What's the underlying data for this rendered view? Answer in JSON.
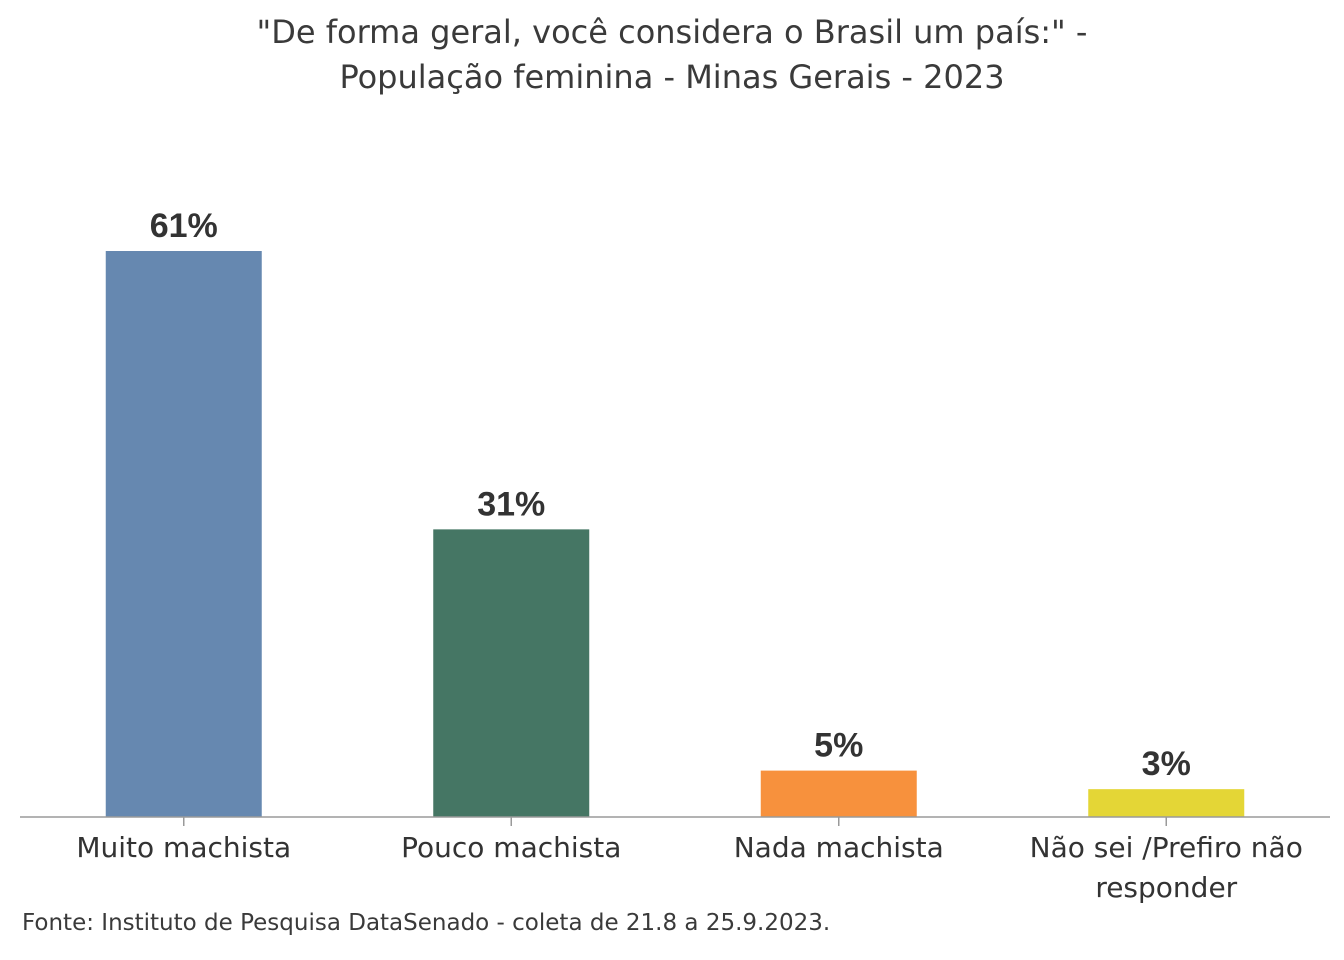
{
  "chart_data": {
    "type": "bar",
    "title_lines": [
      "\"De forma geral, você considera o Brasil um país:\" -",
      "População feminina - Minas Gerais - 2023"
    ],
    "categories": [
      [
        "Muito machista"
      ],
      [
        "Pouco machista"
      ],
      [
        "Nada machista"
      ],
      [
        "Não sei /Prefiro não",
        "responder"
      ]
    ],
    "values": [
      61,
      31,
      5,
      3
    ],
    "value_labels": [
      "61%",
      "31%",
      "5%",
      "3%"
    ],
    "colors": [
      "#6688b0",
      "#457664",
      "#f7913d",
      "#e4d636"
    ],
    "unit": "%",
    "ylim": [
      0,
      61
    ],
    "grid": false,
    "legend": "none"
  },
  "source": "Fonte: Instituto de Pesquisa DataSenado - coleta de 21.8 a 25.9.2023."
}
